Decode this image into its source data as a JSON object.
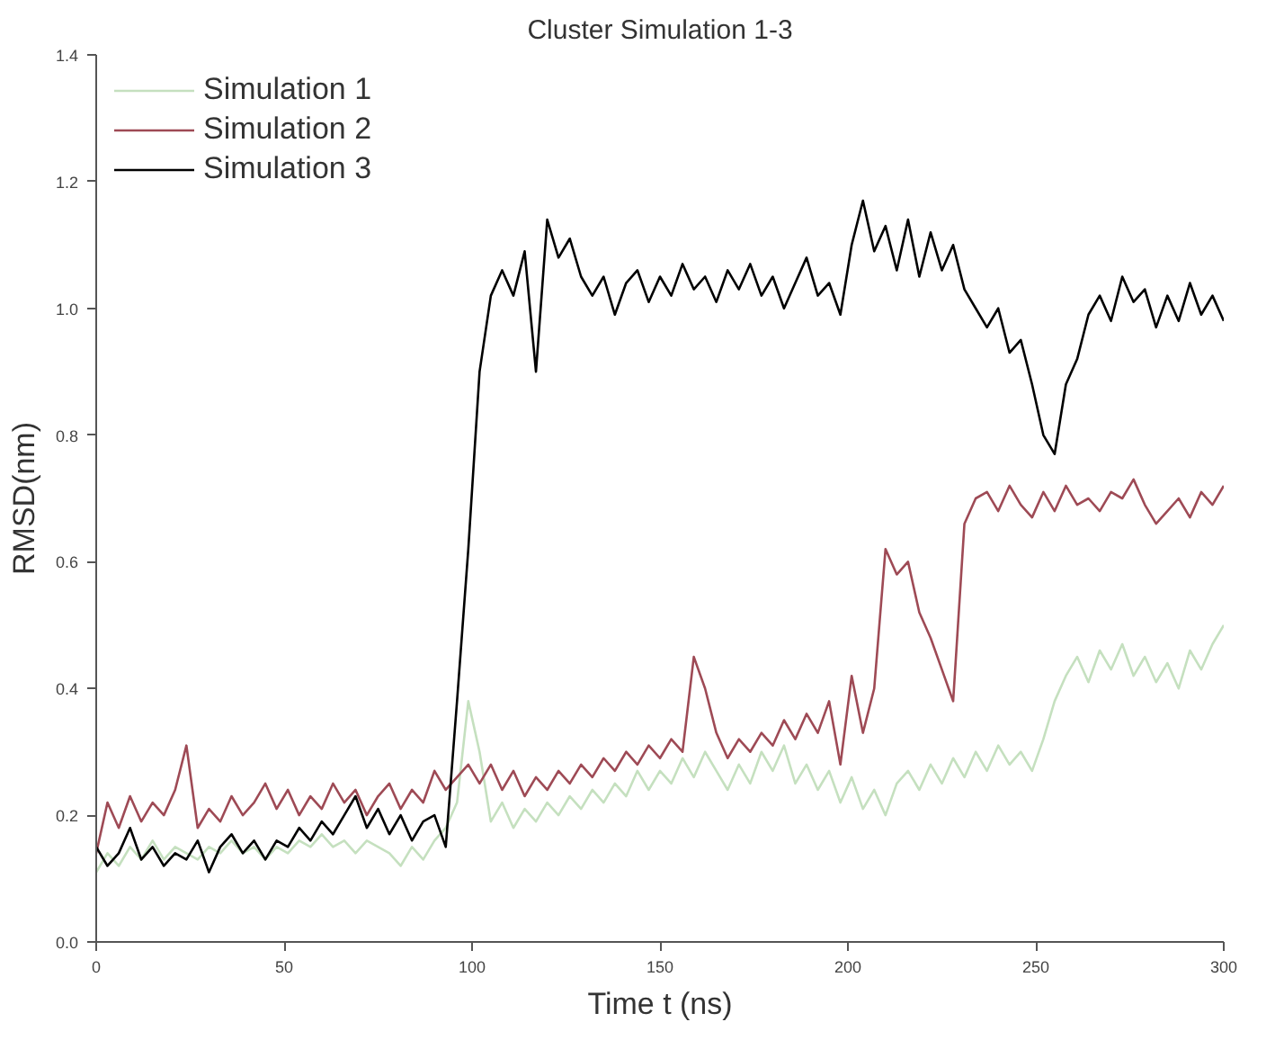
{
  "chart_data": {
    "type": "line",
    "title": "Cluster Simulation 1-3",
    "xlabel": "Time t (ns)",
    "ylabel": "RMSD(nm)",
    "xlim": [
      0,
      300
    ],
    "xticks": [
      0,
      50,
      100,
      150,
      200,
      250,
      300
    ],
    "ylim": [
      0,
      1.4
    ],
    "yticks": [
      {
        "value": 0,
        "label": "0.0"
      },
      0.2,
      0.4,
      0.6,
      0.8,
      {
        "value": 1,
        "label": "1.0"
      },
      1.2,
      1.4
    ],
    "grid": false,
    "legend": "top left",
    "line_style": "solid",
    "marker": "none",
    "x": [
      0,
      3,
      6,
      9,
      12,
      15,
      18,
      21,
      24,
      27,
      30,
      33,
      36,
      39,
      42,
      45,
      48,
      51,
      54,
      57,
      60,
      63,
      66,
      69,
      72,
      75,
      78,
      81,
      84,
      87,
      90,
      93,
      96,
      99,
      102,
      105,
      108,
      111,
      114,
      117,
      120,
      123,
      126,
      129,
      132,
      135,
      138,
      141,
      144,
      147,
      150,
      153,
      156,
      159,
      162,
      165,
      168,
      171,
      174,
      177,
      180,
      183,
      186,
      189,
      192,
      195,
      198,
      201,
      204,
      207,
      210,
      213,
      216,
      219,
      222,
      225,
      228,
      231,
      234,
      237,
      240,
      243,
      246,
      249,
      252,
      255,
      258,
      261,
      264,
      267,
      270,
      273,
      276,
      279,
      282,
      285,
      288,
      291,
      294,
      297,
      300
    ],
    "series": [
      {
        "name": "Simulation 1",
        "color": "#c5e0bf",
        "values": [
          0.11,
          0.14,
          0.12,
          0.15,
          0.13,
          0.16,
          0.13,
          0.15,
          0.14,
          0.13,
          0.15,
          0.14,
          0.16,
          0.14,
          0.15,
          0.13,
          0.15,
          0.14,
          0.16,
          0.15,
          0.17,
          0.15,
          0.16,
          0.14,
          0.16,
          0.15,
          0.14,
          0.12,
          0.15,
          0.13,
          0.16,
          0.18,
          0.22,
          0.38,
          0.3,
          0.19,
          0.22,
          0.18,
          0.21,
          0.19,
          0.22,
          0.2,
          0.23,
          0.21,
          0.24,
          0.22,
          0.25,
          0.23,
          0.27,
          0.24,
          0.27,
          0.25,
          0.29,
          0.26,
          0.3,
          0.27,
          0.24,
          0.28,
          0.25,
          0.3,
          0.27,
          0.31,
          0.25,
          0.28,
          0.24,
          0.27,
          0.22,
          0.26,
          0.21,
          0.24,
          0.2,
          0.25,
          0.27,
          0.24,
          0.28,
          0.25,
          0.29,
          0.26,
          0.3,
          0.27,
          0.31,
          0.28,
          0.3,
          0.27,
          0.32,
          0.38,
          0.42,
          0.45,
          0.41,
          0.46,
          0.43,
          0.47,
          0.42,
          0.45,
          0.41,
          0.44,
          0.4,
          0.46,
          0.43,
          0.47,
          0.5
        ]
      },
      {
        "name": "Simulation 2",
        "color": "#9e4a55",
        "values": [
          0.14,
          0.22,
          0.18,
          0.23,
          0.19,
          0.22,
          0.2,
          0.24,
          0.31,
          0.18,
          0.21,
          0.19,
          0.23,
          0.2,
          0.22,
          0.25,
          0.21,
          0.24,
          0.2,
          0.23,
          0.21,
          0.25,
          0.22,
          0.24,
          0.2,
          0.23,
          0.25,
          0.21,
          0.24,
          0.22,
          0.27,
          0.24,
          0.26,
          0.28,
          0.25,
          0.28,
          0.24,
          0.27,
          0.23,
          0.26,
          0.24,
          0.27,
          0.25,
          0.28,
          0.26,
          0.29,
          0.27,
          0.3,
          0.28,
          0.31,
          0.29,
          0.32,
          0.3,
          0.45,
          0.4,
          0.33,
          0.29,
          0.32,
          0.3,
          0.33,
          0.31,
          0.35,
          0.32,
          0.36,
          0.33,
          0.38,
          0.28,
          0.42,
          0.33,
          0.4,
          0.62,
          0.58,
          0.6,
          0.52,
          0.48,
          0.43,
          0.38,
          0.66,
          0.7,
          0.71,
          0.68,
          0.72,
          0.69,
          0.67,
          0.71,
          0.68,
          0.72,
          0.69,
          0.7,
          0.68,
          0.71,
          0.7,
          0.73,
          0.69,
          0.66,
          0.68,
          0.7,
          0.67,
          0.71,
          0.69,
          0.72
        ]
      },
      {
        "name": "Simulation 3",
        "color": "#000000",
        "values": [
          0.15,
          0.12,
          0.14,
          0.18,
          0.13,
          0.15,
          0.12,
          0.14,
          0.13,
          0.16,
          0.11,
          0.15,
          0.17,
          0.14,
          0.16,
          0.13,
          0.16,
          0.15,
          0.18,
          0.16,
          0.19,
          0.17,
          0.2,
          0.23,
          0.18,
          0.21,
          0.17,
          0.2,
          0.16,
          0.19,
          0.2,
          0.15,
          0.38,
          0.62,
          0.9,
          1.02,
          1.06,
          1.02,
          1.09,
          0.9,
          1.14,
          1.08,
          1.11,
          1.05,
          1.02,
          1.05,
          0.99,
          1.04,
          1.06,
          1.01,
          1.05,
          1.02,
          1.07,
          1.03,
          1.05,
          1.01,
          1.06,
          1.03,
          1.07,
          1.02,
          1.05,
          1.0,
          1.04,
          1.08,
          1.02,
          1.04,
          0.99,
          1.1,
          1.17,
          1.09,
          1.13,
          1.06,
          1.14,
          1.05,
          1.12,
          1.06,
          1.1,
          1.03,
          1.0,
          0.97,
          1.0,
          0.93,
          0.95,
          0.88,
          0.8,
          0.77,
          0.88,
          0.92,
          0.99,
          1.02,
          0.98,
          1.05,
          1.01,
          1.03,
          0.97,
          1.02,
          0.98,
          1.04,
          0.99,
          1.02,
          0.98
        ]
      }
    ]
  }
}
